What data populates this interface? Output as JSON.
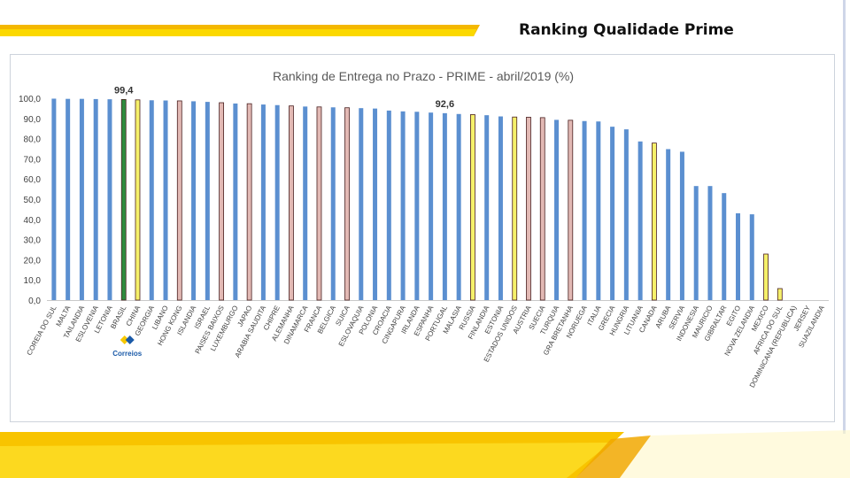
{
  "slide": {
    "title": "Ranking Qualidade Prime"
  },
  "colors": {
    "accent_yellow": "#f7c800",
    "bar_blue": "#5b8fd0",
    "bar_green": "#2e8b3e",
    "bar_yellow": "#f5f06a",
    "bar_pink": "#e2b9b4",
    "bar_outline_dark": "#4a2020"
  },
  "logo": {
    "text": "Correios"
  },
  "chart_data": {
    "type": "bar",
    "title": "Ranking de Entrega no Prazo - PRIME - abril/2019 (%)",
    "xlabel": "",
    "ylabel": "",
    "ylim": [
      0,
      100
    ],
    "yticks": [
      "0,0",
      "10,0",
      "20,0",
      "30,0",
      "40,0",
      "50,0",
      "60,0",
      "70,0",
      "80,0",
      "90,0",
      "100,0"
    ],
    "grid": false,
    "annotations": [
      {
        "category": "BRASIL",
        "text": "99,4"
      },
      {
        "category": "PORTUGAL",
        "text": "92,6"
      }
    ],
    "bars": [
      {
        "label": "COREIA DO SUL",
        "value": 99.8,
        "color": "blue"
      },
      {
        "label": "MALTA",
        "value": 99.7,
        "color": "blue"
      },
      {
        "label": "TAILANDIA",
        "value": 99.7,
        "color": "blue"
      },
      {
        "label": "ESLOVENIA",
        "value": 99.6,
        "color": "blue"
      },
      {
        "label": "LETONIA",
        "value": 99.5,
        "color": "blue"
      },
      {
        "label": "BRASIL",
        "value": 99.4,
        "color": "green"
      },
      {
        "label": "CHINA",
        "value": 99.2,
        "color": "yellow"
      },
      {
        "label": "GEORGIA",
        "value": 99.0,
        "color": "blue"
      },
      {
        "label": "LIBANO",
        "value": 98.9,
        "color": "blue"
      },
      {
        "label": "HONG KONG",
        "value": 98.7,
        "color": "pink"
      },
      {
        "label": "ISLANDIA",
        "value": 98.5,
        "color": "blue"
      },
      {
        "label": "ISRAEL",
        "value": 98.2,
        "color": "blue"
      },
      {
        "label": "PAISES BAIXOS",
        "value": 97.8,
        "color": "pink"
      },
      {
        "label": "LUXEMBURGO",
        "value": 97.4,
        "color": "blue"
      },
      {
        "label": "JAPAO",
        "value": 97.3,
        "color": "pink"
      },
      {
        "label": "ARABIA SAUDITA",
        "value": 96.9,
        "color": "blue"
      },
      {
        "label": "CHIPRE",
        "value": 96.6,
        "color": "blue"
      },
      {
        "label": "ALEMANHA",
        "value": 96.2,
        "color": "pink"
      },
      {
        "label": "DINAMARCA",
        "value": 95.9,
        "color": "blue"
      },
      {
        "label": "FRANCA",
        "value": 95.7,
        "color": "pink"
      },
      {
        "label": "BELGICA",
        "value": 95.5,
        "color": "blue"
      },
      {
        "label": "SUICA",
        "value": 95.3,
        "color": "pink"
      },
      {
        "label": "ESLOVAQUIA",
        "value": 95.1,
        "color": "blue"
      },
      {
        "label": "POLONIA",
        "value": 94.9,
        "color": "blue"
      },
      {
        "label": "CROACIA",
        "value": 93.9,
        "color": "blue"
      },
      {
        "label": "CINGAPURA",
        "value": 93.5,
        "color": "blue"
      },
      {
        "label": "IRLANDA",
        "value": 93.3,
        "color": "blue"
      },
      {
        "label": "ESPANHA",
        "value": 92.9,
        "color": "blue"
      },
      {
        "label": "PORTUGAL",
        "value": 92.6,
        "color": "blue"
      },
      {
        "label": "MALASIA",
        "value": 92.2,
        "color": "blue"
      },
      {
        "label": "RUSSIA",
        "value": 91.9,
        "color": "yellow"
      },
      {
        "label": "FINLANDIA",
        "value": 91.6,
        "color": "blue"
      },
      {
        "label": "ESTONIA",
        "value": 91.0,
        "color": "blue"
      },
      {
        "label": "ESTADOS UNIDOS",
        "value": 90.7,
        "color": "yellow"
      },
      {
        "label": "AUSTRIA",
        "value": 90.6,
        "color": "pink"
      },
      {
        "label": "SUECIA",
        "value": 90.4,
        "color": "pink"
      },
      {
        "label": "TURQUIA",
        "value": 89.3,
        "color": "blue"
      },
      {
        "label": "GRA BRETANHA",
        "value": 89.1,
        "color": "pink"
      },
      {
        "label": "NORUEGA",
        "value": 88.7,
        "color": "blue"
      },
      {
        "label": "ITALIA",
        "value": 88.5,
        "color": "blue"
      },
      {
        "label": "GRECIA",
        "value": 85.9,
        "color": "blue"
      },
      {
        "label": "HUNGRIA",
        "value": 84.6,
        "color": "blue"
      },
      {
        "label": "LITUANIA",
        "value": 78.6,
        "color": "blue"
      },
      {
        "label": "CANADA",
        "value": 77.8,
        "color": "yellow"
      },
      {
        "label": "ARUBA",
        "value": 74.8,
        "color": "blue"
      },
      {
        "label": "SERVIA",
        "value": 73.5,
        "color": "blue"
      },
      {
        "label": "INDONESIA",
        "value": 56.5,
        "color": "blue"
      },
      {
        "label": "MAURICIO",
        "value": 56.5,
        "color": "blue"
      },
      {
        "label": "GIBRALTAR",
        "value": 53.0,
        "color": "blue"
      },
      {
        "label": "EGITO",
        "value": 43.0,
        "color": "blue"
      },
      {
        "label": "NOVA ZELANDIA",
        "value": 42.5,
        "color": "blue"
      },
      {
        "label": "MEXICO",
        "value": 22.8,
        "color": "yellow"
      },
      {
        "label": "AFRICA DO SUL",
        "value": 5.7,
        "color": "yellow"
      },
      {
        "label": "DOMINICANA (REPUBLICA)",
        "value": 0,
        "color": "blue"
      },
      {
        "label": "JERSEY",
        "value": 0,
        "color": "blue"
      },
      {
        "label": "SUAZILANDIA",
        "value": 0,
        "color": "blue"
      }
    ]
  }
}
